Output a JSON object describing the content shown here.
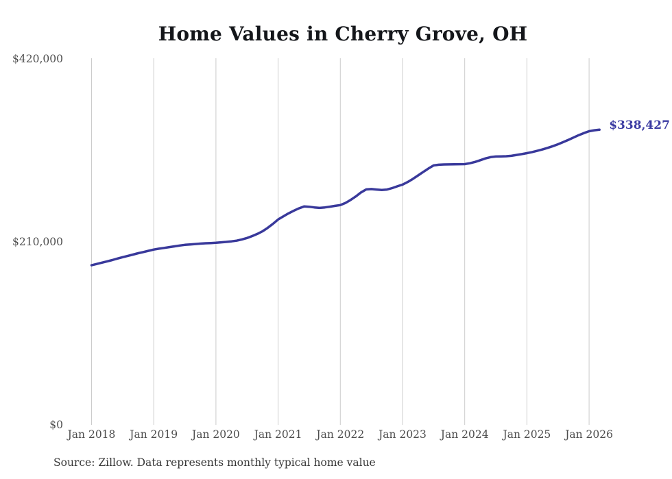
{
  "chart_data": {
    "type": "line",
    "title": "Home Values in Cherry Grove, OH",
    "source": "Source: Zillow. Data represents monthly typical home value",
    "series_name": "Typical home value",
    "x_start_year": 2018,
    "points_per_year": 12,
    "x_start_label": "Jan 2018",
    "values": [
      183000,
      184500,
      186000,
      187500,
      189000,
      190700,
      192300,
      193800,
      195300,
      196800,
      198200,
      199600,
      201000,
      202000,
      202900,
      203800,
      204700,
      205600,
      206400,
      206900,
      207400,
      207800,
      208200,
      208500,
      208800,
      209300,
      209800,
      210400,
      211200,
      212600,
      214300,
      216500,
      219000,
      222000,
      226000,
      230500,
      235500,
      239000,
      242500,
      245500,
      248200,
      250400,
      250100,
      249300,
      248800,
      249300,
      250200,
      251100,
      252000,
      254500,
      258000,
      262000,
      266500,
      270000,
      270400,
      269800,
      269300,
      269800,
      271500,
      273500,
      275500,
      278500,
      282000,
      286000,
      290000,
      294000,
      297500,
      298300,
      298600,
      298700,
      298800,
      298900,
      299000,
      300000,
      301500,
      303500,
      305500,
      307000,
      307700,
      307900,
      308000,
      308500,
      309500,
      310500,
      311600,
      312800,
      314200,
      315800,
      317600,
      319600,
      321800,
      324200,
      326800,
      329500,
      332200,
      334600,
      336700,
      337800,
      338427
    ],
    "end_value": 338427,
    "end_label": "$338,427",
    "ylim": [
      0,
      420000
    ],
    "yticks": [
      {
        "value": 420000,
        "label": "$420,000"
      },
      {
        "value": 210000,
        "label": "$210,000"
      },
      {
        "value": 0,
        "label": "$0"
      }
    ],
    "xticks": [
      {
        "year": 2018,
        "label": "Jan 2018"
      },
      {
        "year": 2019,
        "label": "Jan 2019"
      },
      {
        "year": 2020,
        "label": "Jan 2020"
      },
      {
        "year": 2021,
        "label": "Jan 2021"
      },
      {
        "year": 2022,
        "label": "Jan 2022"
      },
      {
        "year": 2023,
        "label": "Jan 2023"
      },
      {
        "year": 2024,
        "label": "Jan 2024"
      },
      {
        "year": 2025,
        "label": "Jan 2025"
      },
      {
        "year": 2026,
        "label": "Jan 2026"
      }
    ],
    "grid": "vertical-only",
    "legend": "none",
    "line_color": "#39399b",
    "end_label_color": "#3a3aa2",
    "grid_color": "#cccccc"
  }
}
